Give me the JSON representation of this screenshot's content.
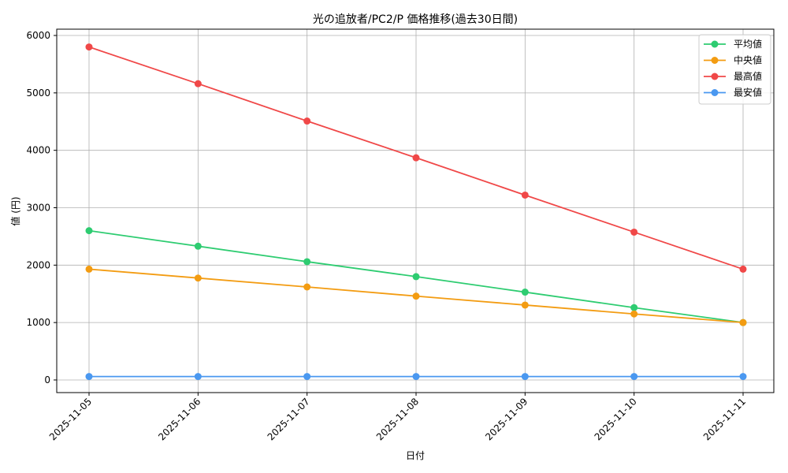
{
  "chart_data": {
    "type": "line",
    "title": "光の追放者/PC2/P 価格推移(過去30日間)",
    "xlabel": "日付",
    "ylabel": "値 (円)",
    "categories": [
      "2025-11-05",
      "2025-11-06",
      "2025-11-07",
      "2025-11-08",
      "2025-11-09",
      "2025-11-10",
      "2025-11-11"
    ],
    "ylim": [
      -220,
      6110
    ],
    "yticks": [
      0,
      1000,
      2000,
      3000,
      4000,
      5000,
      6000
    ],
    "grid": true,
    "legend_position": "top-right",
    "series": [
      {
        "name": "平均値",
        "color": "#2ecc71",
        "values": [
          2600,
          2330,
          2060,
          1800,
          1530,
          1260,
          1000
        ]
      },
      {
        "name": "中央値",
        "color": "#f39c12",
        "values": [
          1930,
          1775,
          1620,
          1460,
          1305,
          1150,
          1000
        ]
      },
      {
        "name": "最高値",
        "color": "#f04848",
        "values": [
          5800,
          5160,
          4510,
          3870,
          3220,
          2575,
          1930
        ]
      },
      {
        "name": "最安値",
        "color": "#4a98f0",
        "values": [
          60,
          60,
          60,
          60,
          60,
          60,
          60
        ]
      }
    ]
  }
}
